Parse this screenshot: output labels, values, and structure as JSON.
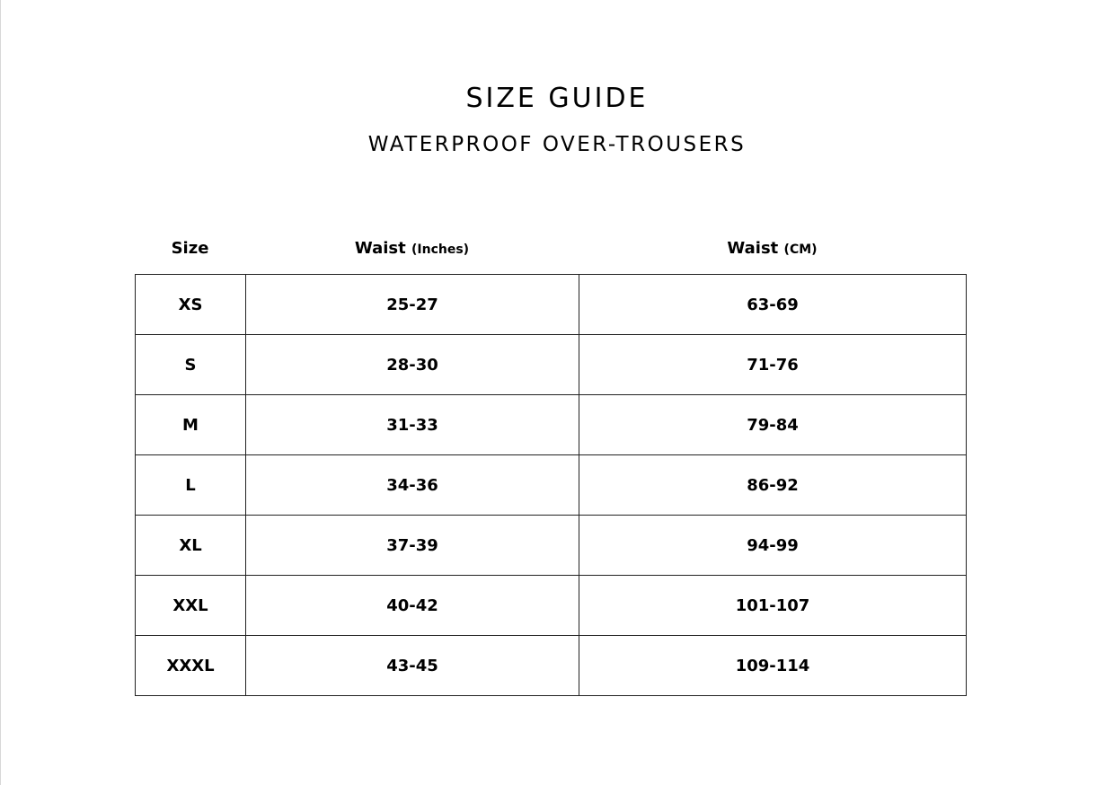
{
  "title": "SIZE GUIDE",
  "subtitle": "WATERPROOF OVER-TROUSERS",
  "headers": [
    {
      "label": "Size",
      "unit": ""
    },
    {
      "label": "Waist ",
      "unit": "(Inches)"
    },
    {
      "label": "Waist ",
      "unit": "(CM)"
    }
  ],
  "rows": [
    [
      "XS",
      "25-27",
      "63-69"
    ],
    [
      "S",
      "28-30",
      "71-76"
    ],
    [
      "M",
      "31-33",
      "79-84"
    ],
    [
      "L",
      "34-36",
      "86-92"
    ],
    [
      "XL",
      "37-39",
      "94-99"
    ],
    [
      "XXL",
      "40-42",
      "101-107"
    ],
    [
      "XXXL",
      "43-45",
      "109-114"
    ]
  ]
}
